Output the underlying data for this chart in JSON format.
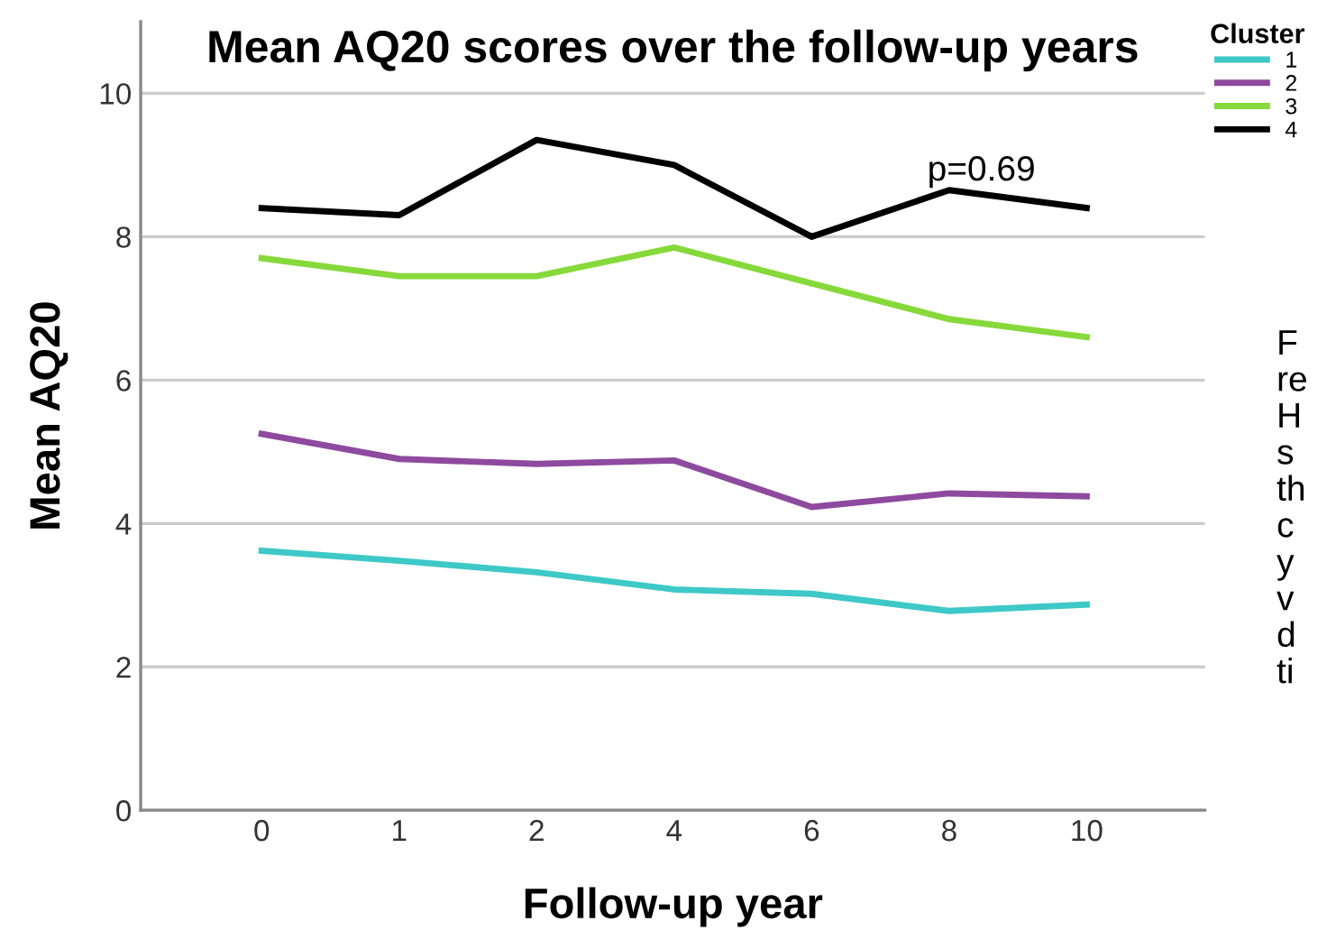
{
  "chart_data": {
    "type": "line",
    "title": "Mean AQ20 scores over the follow-up years",
    "xlabel": "Follow-up year",
    "ylabel": "Mean AQ20",
    "legend_title": "Cluster",
    "categories": [
      "0",
      "1",
      "2",
      "4",
      "6",
      "8",
      "10"
    ],
    "series": [
      {
        "name": "1",
        "color": "#3ec8c8",
        "values": [
          3.62,
          3.48,
          3.32,
          3.08,
          3.02,
          2.78,
          2.87
        ]
      },
      {
        "name": "2",
        "color": "#8e4a9e",
        "values": [
          5.25,
          4.9,
          4.83,
          4.88,
          4.23,
          4.42,
          4.38
        ]
      },
      {
        "name": "3",
        "color": "#86d93a",
        "values": [
          7.7,
          7.45,
          7.45,
          7.85,
          7.35,
          6.85,
          6.6
        ]
      },
      {
        "name": "4",
        "color": "#000000",
        "values": [
          8.4,
          8.3,
          9.35,
          9.0,
          8.0,
          8.65,
          8.4
        ]
      }
    ],
    "ylim": [
      0,
      11
    ],
    "yticks": [
      0,
      2,
      4,
      6,
      8,
      10
    ],
    "grid": "y",
    "legend": "top right",
    "marker": "none",
    "line_style": "solid",
    "annotations": [
      "p=0.69",
      "F\nre\nH\ns\nth\nc\ny\nv\nd\nti"
    ]
  }
}
